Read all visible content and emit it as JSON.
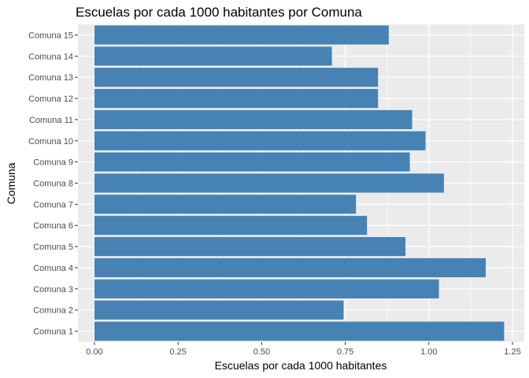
{
  "chart_data": {
    "type": "bar",
    "orientation": "horizontal",
    "title": "Escuelas por cada 1000 habitantes por Comuna",
    "xlabel": "Escuelas por cada 1000 habitantes",
    "ylabel": "Comuna",
    "categories": [
      "Comuna 1",
      "Comuna 2",
      "Comuna 3",
      "Comuna 4",
      "Comuna 5",
      "Comuna 6",
      "Comuna 7",
      "Comuna 8",
      "Comuna 9",
      "Comuna 10",
      "Comuna 11",
      "Comuna 12",
      "Comuna 13",
      "Comuna 14",
      "Comuna 15"
    ],
    "values": [
      1.225,
      0.745,
      1.03,
      1.17,
      0.93,
      0.815,
      0.782,
      1.045,
      0.943,
      0.99,
      0.95,
      0.848,
      0.848,
      0.71,
      0.88
    ],
    "xlim": [
      0,
      1.25
    ],
    "xticks": [
      0,
      0.25,
      0.5,
      0.75,
      1.0,
      1.25
    ],
    "xtick_labels": [
      "0.00",
      "0.25",
      "0.50",
      "0.75",
      "1.00",
      "1.25"
    ],
    "grid": true,
    "colors": {
      "bar": "#4682B4",
      "panel": "#EBEBEB",
      "grid": "#FFFFFF"
    }
  }
}
